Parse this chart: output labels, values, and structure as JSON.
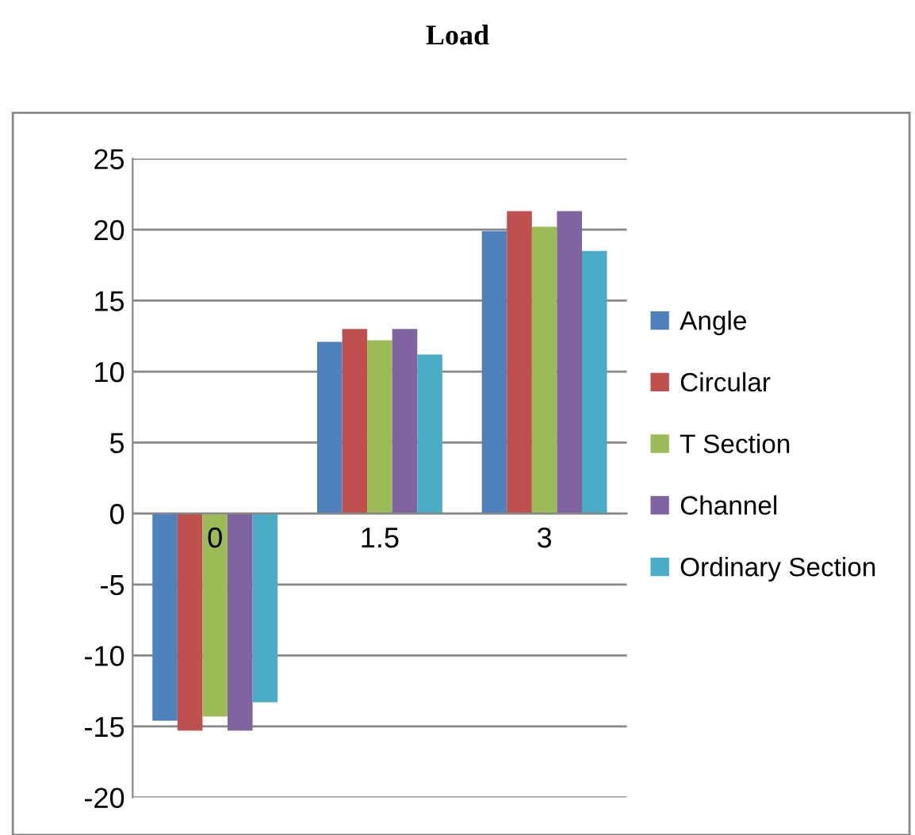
{
  "chart_data": {
    "type": "bar",
    "title": "Load",
    "categories": [
      "0",
      "1.5",
      "3"
    ],
    "series": [
      {
        "name": "Angle",
        "color": "#4f81bd",
        "values": [
          -14.6,
          12.1,
          19.9
        ]
      },
      {
        "name": "Circular",
        "color": "#c0504d",
        "values": [
          -15.3,
          13.0,
          21.3
        ]
      },
      {
        "name": "T Section",
        "color": "#9bbb59",
        "values": [
          -14.3,
          12.2,
          20.2
        ]
      },
      {
        "name": "Channel",
        "color": "#8064a2",
        "values": [
          -15.3,
          13.0,
          21.3
        ]
      },
      {
        "name": "Ordinary Section",
        "color": "#4bacc6",
        "values": [
          -13.3,
          11.2,
          18.5
        ]
      }
    ],
    "ylim": [
      -20,
      25
    ],
    "yticks": [
      -20,
      -15,
      -10,
      -5,
      0,
      5,
      10,
      15,
      20,
      25
    ],
    "grid": "y",
    "legend": "right"
  }
}
